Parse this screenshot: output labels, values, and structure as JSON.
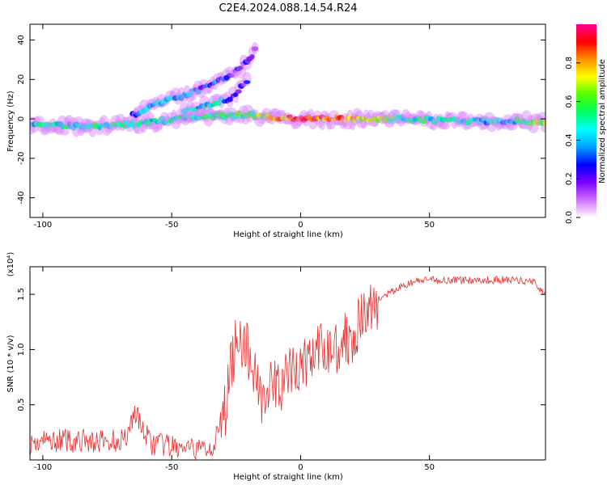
{
  "figure_title": "C2E4.2024.088.14.54.R24",
  "chart_data": [
    {
      "type": "heatmap",
      "title": "C2E4.2024.088.14.54.R24",
      "xlabel": "Height of straight line (km)",
      "ylabel": "Frequency (Hz)",
      "xlim": [
        -105,
        95
      ],
      "ylim": [
        -50,
        48
      ],
      "xticks": [
        -100,
        -50,
        0,
        50
      ],
      "yticks": [
        40,
        20,
        0,
        -20,
        -40
      ],
      "colorbar": {
        "label": "Normalized spectral amplitude",
        "range": [
          0.0,
          1.0
        ],
        "ticks": [
          0.0,
          0.2,
          0.4,
          0.6,
          0.8
        ],
        "colormap": [
          "#ffffff",
          "#d070ff",
          "#7a00ff",
          "#0000ff",
          "#00a0ff",
          "#00ffff",
          "#00ff60",
          "#50ff00",
          "#ffff00",
          "#ff9000",
          "#ff0000",
          "#ff0090"
        ]
      },
      "features": [
        {
          "name": "main band",
          "x": [
            -105,
            -80,
            -60,
            -40,
            -20,
            0,
            20,
            40,
            60,
            80,
            95
          ],
          "y": [
            -3,
            -4,
            -2,
            1,
            2,
            0,
            0,
            0,
            -1,
            -1,
            -2
          ],
          "amplitude": [
            0.45,
            0.5,
            0.45,
            0.5,
            0.55,
            0.9,
            0.75,
            0.5,
            0.45,
            0.4,
            0.7
          ]
        },
        {
          "name": "upper branch",
          "x": [
            -65,
            -55,
            -45,
            -35,
            -25,
            -20,
            -17
          ],
          "y": [
            2,
            8,
            12,
            17,
            24,
            30,
            36
          ],
          "amplitude": [
            0.3,
            0.4,
            0.35,
            0.3,
            0.2,
            0.15,
            0.1
          ]
        },
        {
          "name": "lower branch",
          "x": [
            -45,
            -35,
            -28,
            -24,
            -20
          ],
          "y": [
            4,
            7,
            10,
            14,
            21
          ],
          "amplitude": [
            0.4,
            0.45,
            0.35,
            0.25,
            0.15
          ]
        }
      ]
    },
    {
      "type": "line",
      "xlabel": "Height of straight line (km)",
      "ylabel": "SNR (10 * v/v)",
      "multiplier_label": "(x10⁴)",
      "xlim": [
        -105,
        95
      ],
      "ylim": [
        0,
        1.75
      ],
      "xticks": [
        -100,
        -50,
        0,
        50
      ],
      "yticks": [
        0.5,
        1.0,
        1.5
      ],
      "color": "#e53030",
      "series": [
        {
          "x": [
            -105,
            -95,
            -85,
            -75,
            -68,
            -64,
            -62,
            -58,
            -50,
            -42,
            -35,
            -31,
            -29,
            -27,
            -24,
            -22,
            -20,
            -18,
            -15,
            -10,
            -5,
            0,
            5,
            10,
            15,
            20,
            30,
            40,
            45,
            50,
            60,
            70,
            80,
            90,
            95
          ],
          "values": [
            0.15,
            0.18,
            0.17,
            0.16,
            0.2,
            0.45,
            0.3,
            0.15,
            0.12,
            0.08,
            0.12,
            0.25,
            0.5,
            0.85,
            1.2,
            1.0,
            0.95,
            0.8,
            0.6,
            0.65,
            0.75,
            0.85,
            0.95,
            1.0,
            1.05,
            1.15,
            1.45,
            1.58,
            1.62,
            1.63,
            1.63,
            1.63,
            1.63,
            1.62,
            1.5
          ]
        }
      ]
    }
  ]
}
